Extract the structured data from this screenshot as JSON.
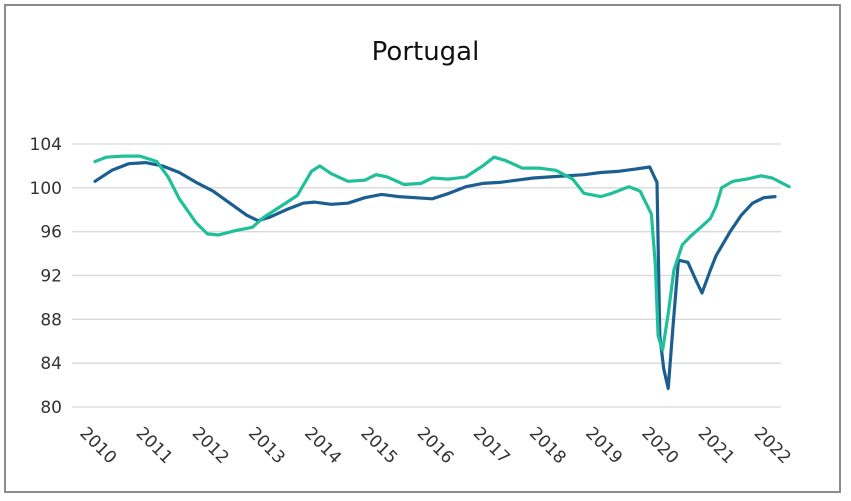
{
  "chart_data": {
    "type": "line",
    "title": "Portugal",
    "xlabel": "",
    "ylabel": "",
    "ylim": [
      80,
      104
    ],
    "xlim": [
      2010,
      2022.45
    ],
    "y_ticks": [
      80,
      84,
      88,
      92,
      96,
      100,
      104
    ],
    "x_ticks": [
      "2010",
      "2011",
      "2012",
      "2013",
      "2014",
      "2015",
      "2016",
      "2017",
      "2018",
      "2019",
      "2020",
      "2021",
      "2022"
    ],
    "grid": true,
    "legend": "none",
    "colors": {
      "dark_blue": "#1b5f91",
      "teal": "#1fbf9a",
      "grid": "#d9d9d9",
      "frame": "#8c8c8c"
    },
    "series": [
      {
        "color": "#1b5f91",
        "points": [
          [
            2010.0,
            100.6
          ],
          [
            2010.3,
            101.6
          ],
          [
            2010.6,
            102.2
          ],
          [
            2010.9,
            102.3
          ],
          [
            2011.2,
            102.0
          ],
          [
            2011.5,
            101.4
          ],
          [
            2011.8,
            100.5
          ],
          [
            2012.1,
            99.7
          ],
          [
            2012.4,
            98.6
          ],
          [
            2012.7,
            97.5
          ],
          [
            2012.9,
            97.0
          ],
          [
            2013.1,
            97.3
          ],
          [
            2013.4,
            98.0
          ],
          [
            2013.7,
            98.6
          ],
          [
            2013.9,
            98.7
          ],
          [
            2014.2,
            98.5
          ],
          [
            2014.5,
            98.6
          ],
          [
            2014.8,
            99.1
          ],
          [
            2015.1,
            99.4
          ],
          [
            2015.4,
            99.2
          ],
          [
            2015.7,
            99.1
          ],
          [
            2016.0,
            99.0
          ],
          [
            2016.3,
            99.5
          ],
          [
            2016.6,
            100.1
          ],
          [
            2016.9,
            100.4
          ],
          [
            2017.2,
            100.5
          ],
          [
            2017.5,
            100.7
          ],
          [
            2017.8,
            100.9
          ],
          [
            2018.1,
            101.0
          ],
          [
            2018.4,
            101.1
          ],
          [
            2018.7,
            101.2
          ],
          [
            2019.0,
            101.4
          ],
          [
            2019.3,
            101.5
          ],
          [
            2019.6,
            101.7
          ],
          [
            2019.87,
            101.9
          ],
          [
            2020.0,
            100.5
          ],
          [
            2020.05,
            86.5
          ],
          [
            2020.12,
            83.5
          ],
          [
            2020.2,
            81.7
          ],
          [
            2020.28,
            87.0
          ],
          [
            2020.38,
            93.4
          ],
          [
            2020.55,
            93.2
          ],
          [
            2020.7,
            91.5
          ],
          [
            2020.8,
            90.4
          ],
          [
            2020.95,
            92.5
          ],
          [
            2021.05,
            93.8
          ],
          [
            2021.3,
            96.0
          ],
          [
            2021.5,
            97.5
          ],
          [
            2021.7,
            98.6
          ],
          [
            2021.9,
            99.1
          ],
          [
            2022.1,
            99.2
          ]
        ]
      },
      {
        "color": "#1fbf9a",
        "points": [
          [
            2010.0,
            102.4
          ],
          [
            2010.2,
            102.8
          ],
          [
            2010.5,
            102.9
          ],
          [
            2010.8,
            102.9
          ],
          [
            2011.1,
            102.4
          ],
          [
            2011.3,
            101.0
          ],
          [
            2011.5,
            99.0
          ],
          [
            2011.8,
            96.8
          ],
          [
            2012.0,
            95.8
          ],
          [
            2012.2,
            95.7
          ],
          [
            2012.5,
            96.1
          ],
          [
            2012.8,
            96.4
          ],
          [
            2013.0,
            97.3
          ],
          [
            2013.3,
            98.3
          ],
          [
            2013.6,
            99.3
          ],
          [
            2013.85,
            101.5
          ],
          [
            2014.0,
            102.0
          ],
          [
            2014.2,
            101.3
          ],
          [
            2014.5,
            100.6
          ],
          [
            2014.8,
            100.7
          ],
          [
            2015.0,
            101.2
          ],
          [
            2015.2,
            101.0
          ],
          [
            2015.5,
            100.3
          ],
          [
            2015.8,
            100.4
          ],
          [
            2016.0,
            100.9
          ],
          [
            2016.3,
            100.8
          ],
          [
            2016.6,
            101.0
          ],
          [
            2016.9,
            102.0
          ],
          [
            2017.1,
            102.8
          ],
          [
            2017.3,
            102.5
          ],
          [
            2017.6,
            101.8
          ],
          [
            2017.9,
            101.8
          ],
          [
            2018.2,
            101.6
          ],
          [
            2018.5,
            100.8
          ],
          [
            2018.7,
            99.5
          ],
          [
            2019.0,
            99.2
          ],
          [
            2019.2,
            99.5
          ],
          [
            2019.5,
            100.1
          ],
          [
            2019.7,
            99.7
          ],
          [
            2019.9,
            97.6
          ],
          [
            2019.97,
            93.0
          ],
          [
            2020.02,
            86.5
          ],
          [
            2020.1,
            85.2
          ],
          [
            2020.2,
            88.5
          ],
          [
            2020.3,
            92.5
          ],
          [
            2020.45,
            94.8
          ],
          [
            2020.6,
            95.6
          ],
          [
            2020.8,
            96.5
          ],
          [
            2020.95,
            97.2
          ],
          [
            2021.05,
            98.3
          ],
          [
            2021.15,
            100.0
          ],
          [
            2021.35,
            100.6
          ],
          [
            2021.6,
            100.8
          ],
          [
            2021.85,
            101.1
          ],
          [
            2022.05,
            100.9
          ],
          [
            2022.35,
            100.1
          ]
        ]
      }
    ]
  }
}
